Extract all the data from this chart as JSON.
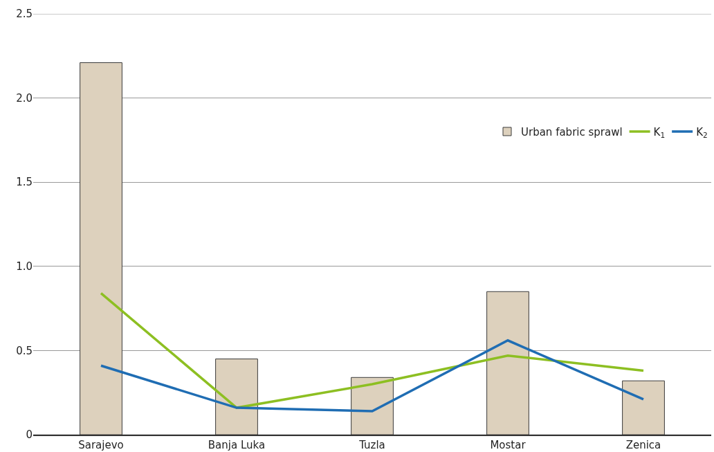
{
  "chart_data": {
    "type": "bar",
    "categories": [
      "Sarajevo",
      "Banja Luka",
      "Tuzla",
      "Mostar",
      "Zenica"
    ],
    "series": [
      {
        "name": "Urban fabric sprawl",
        "color": "#ddd1bd",
        "values": [
          2.21,
          0.45,
          0.34,
          0.85,
          0.32
        ]
      },
      {
        "name": "K$_{1}$",
        "type": "line",
        "color": "#8dbf22",
        "values": [
          0.84,
          0.16,
          0.3,
          0.47,
          0.38
        ]
      },
      {
        "name": "K$_{2}$",
        "type": "line",
        "color": "#1f6db3",
        "values": [
          0.41,
          0.16,
          0.14,
          0.56,
          0.21
        ]
      }
    ],
    "ylim": [
      0,
      2.5
    ],
    "yticks": [
      0,
      0.5,
      {
        "value": 1,
        "label": "1.0"
      },
      1.5,
      {
        "value": 2,
        "label": "2.0"
      },
      2.5
    ],
    "grid": "y",
    "legend": "top right",
    "marker": "none",
    "line_style": "solid"
  }
}
